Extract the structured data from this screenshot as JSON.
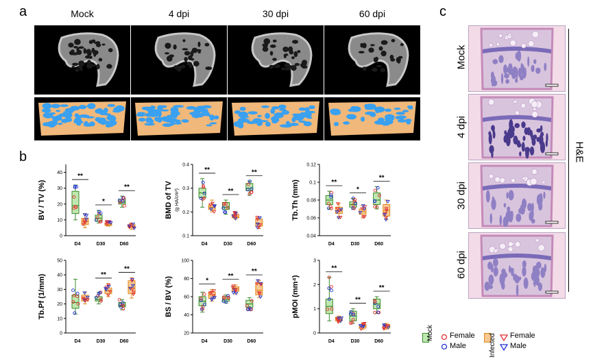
{
  "panels": {
    "a": "a",
    "b": "b",
    "c": "c"
  },
  "ct_columns": [
    "Mock",
    "4 dpi",
    "30 dpi",
    "60 dpi"
  ],
  "he_rows": [
    "Mock",
    "4 dpi",
    "30 dpi",
    "60 dpi"
  ],
  "he_stain_label": "H&E",
  "colors": {
    "mock_fill": "#bfe8b0",
    "mock_stroke": "#3a8a2a",
    "infected_fill": "#f7c890",
    "infected_stroke": "#e08a20",
    "female": "#e03030",
    "male": "#2030d0",
    "bone_blue": "#3aa0f0",
    "bone_tan": "#f0b87a"
  },
  "legend": {
    "mock": "Mock",
    "infected": "Infected",
    "female": "Female",
    "male": "Male"
  },
  "chart_data": [
    {
      "id": "bvtv",
      "type": "box",
      "ylabel": "BV / TV (%)",
      "ylim": [
        0,
        45
      ],
      "yticks": [
        0,
        10,
        20,
        30,
        40
      ],
      "categories": [
        "D4",
        "D30",
        "D60"
      ],
      "series": [
        {
          "name": "Mock",
          "values": [
            {
              "min": 10,
              "q1": 14,
              "median": 19,
              "q3": 28,
              "max": 32
            },
            {
              "min": 8,
              "q1": 9,
              "median": 11,
              "q3": 13,
              "max": 16
            },
            {
              "min": 18,
              "q1": 20,
              "median": 21,
              "q3": 23,
              "max": 25
            }
          ]
        },
        {
          "name": "Infected",
          "values": [
            {
              "min": 5,
              "q1": 7,
              "median": 9,
              "q3": 11,
              "max": 14
            },
            {
              "min": 6,
              "q1": 6.5,
              "median": 7,
              "q3": 8,
              "max": 9
            },
            {
              "min": 4,
              "q1": 5,
              "median": 6,
              "q3": 7,
              "max": 8
            }
          ]
        }
      ],
      "sig": [
        "**",
        "*",
        "**"
      ]
    },
    {
      "id": "bmd",
      "type": "box",
      "ylabel": "BMD of TV",
      "yunit": "(g HA/cm³)",
      "ylim": [
        0.1,
        0.4
      ],
      "yticks": [
        0.1,
        0.2,
        0.3,
        0.4
      ],
      "categories": [
        "D4",
        "D30",
        "D60"
      ],
      "series": [
        {
          "name": "Mock",
          "values": [
            {
              "min": 0.22,
              "q1": 0.26,
              "median": 0.28,
              "q3": 0.3,
              "max": 0.34
            },
            {
              "min": 0.19,
              "q1": 0.21,
              "median": 0.22,
              "q3": 0.24,
              "max": 0.25
            },
            {
              "min": 0.27,
              "q1": 0.29,
              "median": 0.3,
              "q3": 0.32,
              "max": 0.33
            }
          ]
        },
        {
          "name": "Infected",
          "values": [
            {
              "min": 0.2,
              "q1": 0.21,
              "median": 0.22,
              "q3": 0.23,
              "max": 0.25
            },
            {
              "min": 0.17,
              "q1": 0.175,
              "median": 0.18,
              "q3": 0.19,
              "max": 0.2
            },
            {
              "min": 0.13,
              "q1": 0.14,
              "median": 0.15,
              "q3": 0.17,
              "max": 0.18
            }
          ]
        }
      ],
      "sig": [
        "**",
        "**",
        "**"
      ]
    },
    {
      "id": "tbth",
      "type": "box",
      "ylabel": "Tb.Th (mm)",
      "ylim": [
        0.04,
        0.12
      ],
      "yticks": [
        0.04,
        0.06,
        0.08,
        0.1,
        0.12
      ],
      "categories": [
        "D4",
        "D30",
        "D60"
      ],
      "series": [
        {
          "name": "Mock",
          "values": [
            {
              "min": 0.07,
              "q1": 0.075,
              "median": 0.08,
              "q3": 0.085,
              "max": 0.09
            },
            {
              "min": 0.07,
              "q1": 0.072,
              "median": 0.075,
              "q3": 0.078,
              "max": 0.082
            },
            {
              "min": 0.07,
              "q1": 0.075,
              "median": 0.08,
              "q3": 0.088,
              "max": 0.095
            }
          ]
        },
        {
          "name": "Infected",
          "values": [
            {
              "min": 0.06,
              "q1": 0.065,
              "median": 0.068,
              "q3": 0.072,
              "max": 0.076
            },
            {
              "min": 0.06,
              "q1": 0.064,
              "median": 0.067,
              "q3": 0.07,
              "max": 0.074
            },
            {
              "min": 0.058,
              "q1": 0.062,
              "median": 0.068,
              "q3": 0.075,
              "max": 0.08
            }
          ]
        }
      ],
      "sig": [
        "**",
        "*",
        "**"
      ]
    },
    {
      "id": "tbpf",
      "type": "box",
      "ylabel": "Tb.Pf (1/mm)",
      "ylim": [
        0,
        50
      ],
      "yticks": [
        0,
        10,
        20,
        30,
        40,
        50
      ],
      "categories": [
        "D4",
        "D30",
        "D60"
      ],
      "series": [
        {
          "name": "Mock",
          "values": [
            {
              "min": 13,
              "q1": 17,
              "median": 21,
              "q3": 26,
              "max": 37
            },
            {
              "min": 20,
              "q1": 22,
              "median": 23,
              "q3": 25,
              "max": 28
            },
            {
              "min": 16,
              "q1": 18,
              "median": 19,
              "q3": 21,
              "max": 23
            }
          ]
        },
        {
          "name": "Infected",
          "values": [
            {
              "min": 20,
              "q1": 22,
              "median": 24,
              "q3": 26,
              "max": 28
            },
            {
              "min": 25,
              "q1": 27,
              "median": 29,
              "q3": 31,
              "max": 34
            },
            {
              "min": 24,
              "q1": 27,
              "median": 31,
              "q3": 36,
              "max": 38
            }
          ]
        }
      ],
      "sig": [
        "",
        "**",
        "**"
      ]
    },
    {
      "id": "bsbv",
      "type": "box",
      "ylabel": "BS / BV (%)",
      "ylim": [
        20,
        100
      ],
      "yticks": [
        20,
        40,
        60,
        80,
        100
      ],
      "categories": [
        "D4",
        "D30",
        "D60"
      ],
      "series": [
        {
          "name": "Mock",
          "values": [
            {
              "min": 43,
              "q1": 50,
              "median": 55,
              "q3": 60,
              "max": 65
            },
            {
              "min": 53,
              "q1": 55,
              "median": 57,
              "q3": 60,
              "max": 62
            },
            {
              "min": 45,
              "q1": 48,
              "median": 52,
              "q3": 56,
              "max": 59
            }
          ]
        },
        {
          "name": "Infected",
          "values": [
            {
              "min": 55,
              "q1": 58,
              "median": 62,
              "q3": 65,
              "max": 68
            },
            {
              "min": 63,
              "q1": 66,
              "median": 69,
              "q3": 71,
              "max": 73
            },
            {
              "min": 59,
              "q1": 62,
              "median": 67,
              "q3": 75,
              "max": 78
            }
          ]
        }
      ],
      "sig": [
        "*",
        "**",
        "**"
      ]
    },
    {
      "id": "pmoi",
      "type": "box",
      "ylabel": "pMOI (mm⁴)",
      "ylim": [
        0,
        3
      ],
      "yticks": [
        0,
        1,
        2,
        3
      ],
      "categories": [
        "D4",
        "D30",
        "D60"
      ],
      "series": [
        {
          "name": "Mock",
          "values": [
            {
              "min": 0.5,
              "q1": 0.8,
              "median": 1.1,
              "q3": 1.4,
              "max": 2.3
            },
            {
              "min": 0.4,
              "q1": 0.5,
              "median": 0.7,
              "q3": 0.9,
              "max": 1.0
            },
            {
              "min": 0.8,
              "q1": 1.0,
              "median": 1.2,
              "q3": 1.4,
              "max": 1.5
            }
          ]
        },
        {
          "name": "Infected",
          "values": [
            {
              "min": 0.45,
              "q1": 0.5,
              "median": 0.55,
              "q3": 0.65,
              "max": 0.7
            },
            {
              "min": 0.15,
              "q1": 0.2,
              "median": 0.28,
              "q3": 0.35,
              "max": 0.4
            },
            {
              "min": 0.15,
              "q1": 0.2,
              "median": 0.3,
              "q3": 0.35,
              "max": 0.4
            }
          ]
        }
      ],
      "sig": [
        "**",
        "**",
        "**"
      ]
    }
  ]
}
